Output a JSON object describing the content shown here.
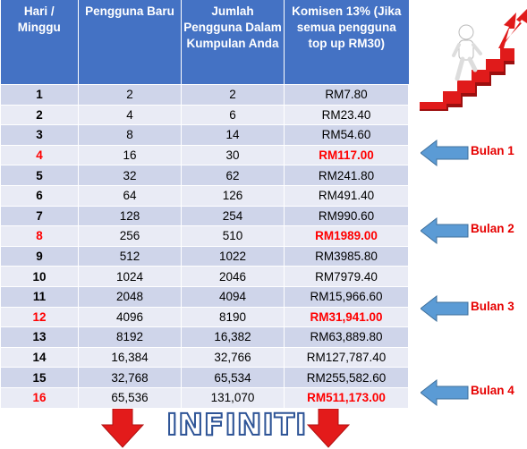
{
  "header": {
    "col_week": "Hari / Minggu",
    "col_new": "Pengguna Baru",
    "col_total": "Jumlah Pengguna Dalam Kumpulan Anda",
    "col_commission": "Komisen 13% (Jika semua pengguna top up RM30)"
  },
  "rows": [
    {
      "week": "1",
      "new": "2",
      "total": "2",
      "commission": "RM7.80"
    },
    {
      "week": "2",
      "new": "4",
      "total": "6",
      "commission": "RM23.40"
    },
    {
      "week": "3",
      "new": "8",
      "total": "14",
      "commission": "RM54.60"
    },
    {
      "week": "4",
      "new": "16",
      "total": "30",
      "commission": "RM117.00"
    },
    {
      "week": "5",
      "new": "32",
      "total": "62",
      "commission": "RM241.80"
    },
    {
      "week": "6",
      "new": "64",
      "total": "126",
      "commission": "RM491.40"
    },
    {
      "week": "7",
      "new": "128",
      "total": "254",
      "commission": "RM990.60"
    },
    {
      "week": "8",
      "new": "256",
      "total": "510",
      "commission": "RM1989.00"
    },
    {
      "week": "9",
      "new": "512",
      "total": "1022",
      "commission": "RM3985.80"
    },
    {
      "week": "10",
      "new": "1024",
      "total": "2046",
      "commission": "RM7979.40"
    },
    {
      "week": "11",
      "new": "2048",
      "total": "4094",
      "commission": "RM15,966.60"
    },
    {
      "week": "12",
      "new": "4096",
      "total": "8190",
      "commission": "RM31,941.00"
    },
    {
      "week": "13",
      "new": "8192",
      "total": "16,382",
      "commission": "RM63,889.80"
    },
    {
      "week": "14",
      "new": "16,384",
      "total": "32,766",
      "commission": "RM127,787.40"
    },
    {
      "week": "15",
      "new": "32,768",
      "total": "65,534",
      "commission": "RM255,582.60"
    },
    {
      "week": "16",
      "new": "65,536",
      "total": "131,070",
      "commission": "RM511,173.00"
    }
  ],
  "months": [
    "Bulan 1",
    "Bulan 2",
    "Bulan 3",
    "Bulan 4"
  ],
  "footer": {
    "text": "INFINITI"
  },
  "colors": {
    "header_bg": "#4472c4",
    "row_odd": "#cfd5ea",
    "row_even": "#e9ebf5",
    "highlight": "#ff0000",
    "month_arrow": "#5b9bd5",
    "down_arrow": "#e31b1b"
  },
  "icons": [
    "person-climbing-stairs-icon",
    "left-arrow-icon",
    "down-arrow-icon"
  ]
}
